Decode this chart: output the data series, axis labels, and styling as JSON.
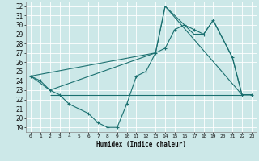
{
  "xlabel": "Humidex (Indice chaleur)",
  "bg_color": "#cce8e8",
  "line_color": "#1b7070",
  "grid_color": "#b0d8d8",
  "xlim": [
    -0.5,
    23.5
  ],
  "ylim": [
    18.5,
    32.5
  ],
  "yticks": [
    19,
    20,
    21,
    22,
    23,
    24,
    25,
    26,
    27,
    28,
    29,
    30,
    31,
    32
  ],
  "xticks": [
    0,
    1,
    2,
    3,
    4,
    5,
    6,
    7,
    8,
    9,
    10,
    11,
    12,
    13,
    14,
    15,
    16,
    17,
    18,
    19,
    20,
    21,
    22,
    23
  ],
  "line1_x": [
    0,
    1,
    2,
    3,
    4,
    5,
    6,
    7,
    8,
    9,
    10,
    11,
    12,
    13,
    14,
    15,
    16,
    17,
    18,
    19,
    20,
    21,
    22,
    23
  ],
  "line1_y": [
    24.5,
    24,
    23,
    22.5,
    21.5,
    21,
    20.5,
    19.5,
    19,
    19,
    21.5,
    24.5,
    25,
    27,
    27.5,
    29.5,
    30,
    29.5,
    29,
    30.5,
    28.5,
    26.5,
    22.5,
    22.5
  ],
  "line2_x": [
    0,
    2,
    13,
    14,
    22,
    23
  ],
  "line2_y": [
    24.5,
    23,
    27,
    32,
    22.5,
    22.5
  ],
  "line3_x": [
    0,
    13,
    14,
    17,
    18,
    19,
    20,
    21,
    22,
    23
  ],
  "line3_y": [
    24.5,
    27,
    32,
    29,
    29,
    30.5,
    28.5,
    26.5,
    22.5,
    22.5
  ],
  "hline_y": 22.5,
  "hline_xstart": 2,
  "hline_xend": 22
}
